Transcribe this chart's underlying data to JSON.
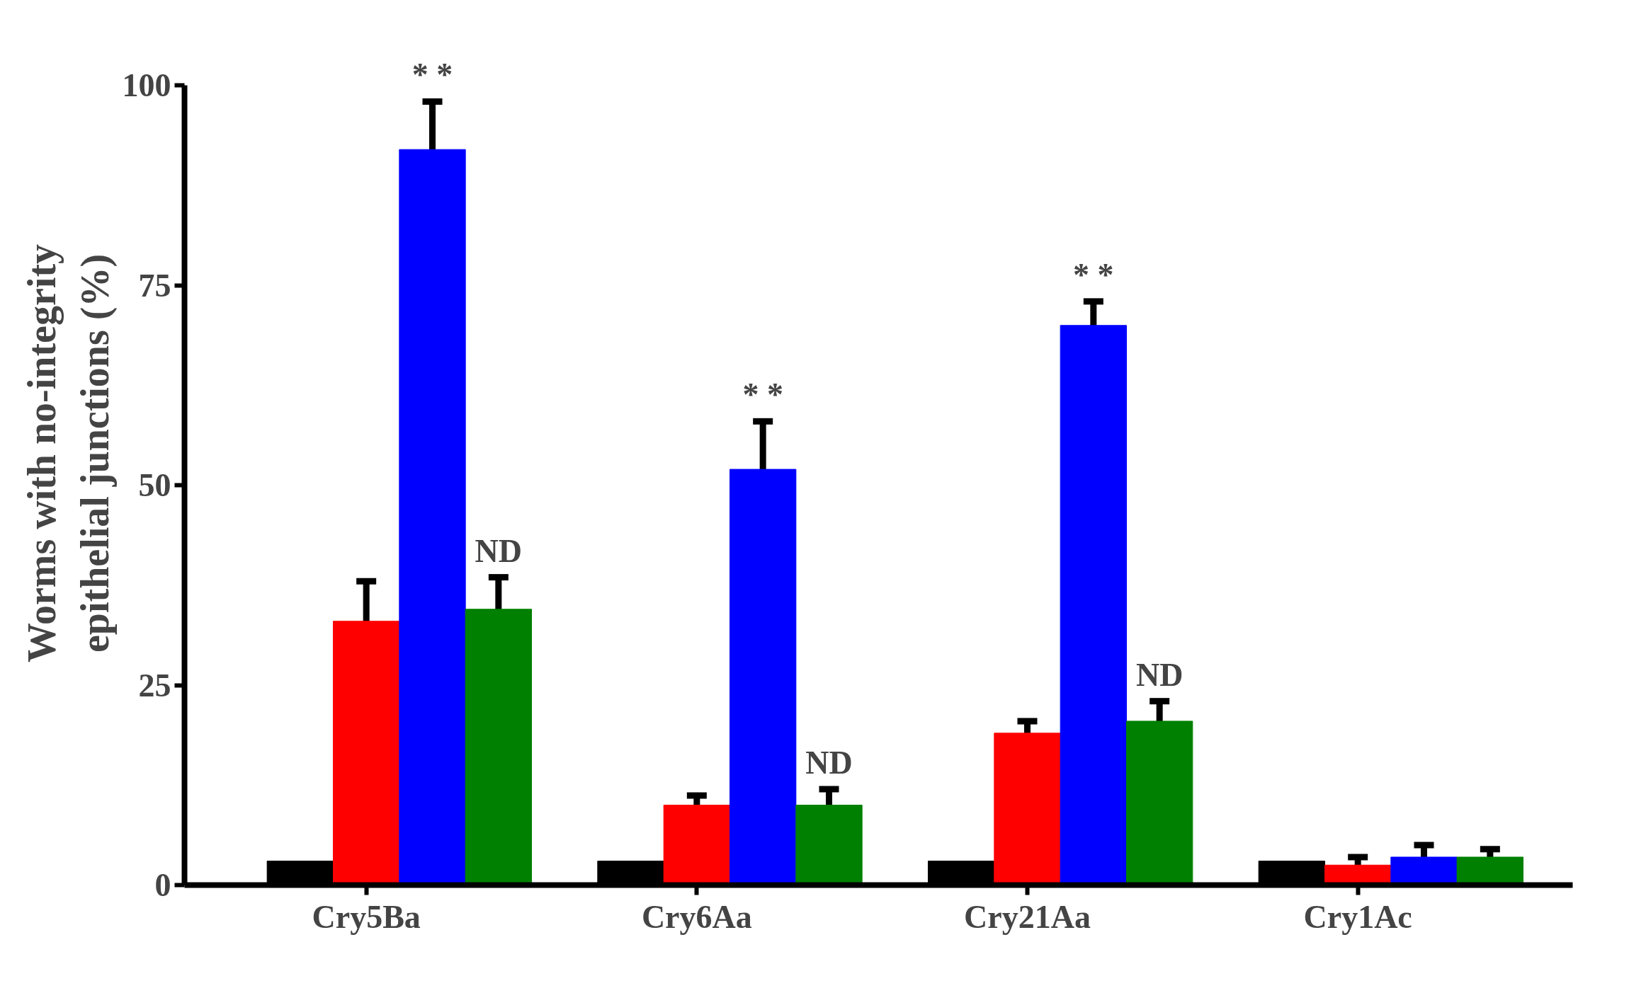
{
  "chart_data": {
    "type": "bar",
    "ylabel": "Worms with no-integrity\nepithelial junctions (%)",
    "categories": [
      "Cry5Ba",
      "Cry6Aa",
      "Cry21Aa",
      "Cry1Ac"
    ],
    "series": [
      {
        "color": "#000000",
        "values": [
          3,
          3,
          3,
          3
        ]
      },
      {
        "color": "#ff0000",
        "values": [
          33,
          10,
          19,
          2.5
        ],
        "errors": [
          5,
          1.2,
          1.5,
          1
        ]
      },
      {
        "color": "#0000ff",
        "values": [
          92,
          52,
          70,
          3.5
        ],
        "errors": [
          6,
          6,
          3,
          1.5
        ],
        "value_labels": [
          "* *",
          "* *",
          "* *",
          null
        ]
      },
      {
        "color": "#008000",
        "values": [
          34.5,
          10,
          20.5,
          3.5
        ],
        "errors": [
          4,
          2,
          2.5,
          1
        ],
        "value_labels": [
          "ND",
          "ND",
          "ND",
          null
        ]
      }
    ],
    "ylim": [
      0,
      100
    ],
    "yticks": [
      0,
      25,
      50,
      75,
      100
    ],
    "grid": false
  }
}
